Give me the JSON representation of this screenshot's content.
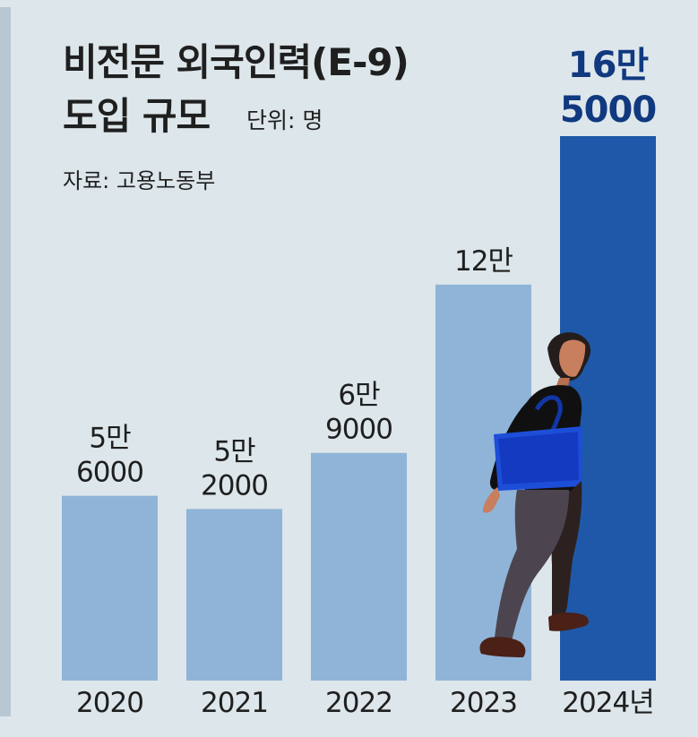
{
  "header": {
    "title_line_1": "비전문 외국인력(E-9)",
    "title_line_2": "도입 규모",
    "unit": "단위: 명",
    "source": "자료: 고용노동부"
  },
  "chart_data": {
    "type": "bar",
    "categories": [
      "2020",
      "2021",
      "2022",
      "2023",
      "2024년"
    ],
    "values": [
      56000,
      52000,
      69000,
      120000,
      165000
    ],
    "value_labels": [
      [
        "5만",
        "6000"
      ],
      [
        "5만",
        "2000"
      ],
      [
        "6만",
        "9000"
      ],
      [
        "12만"
      ],
      [
        "16만",
        "5000"
      ]
    ],
    "highlight_index": 4,
    "ylim": [
      0,
      165000
    ],
    "grid": false,
    "legend": "none",
    "colors": {
      "bar": "#8fb4d8",
      "highlight_bar": "#1f58a8",
      "highlight_label": "#10397f",
      "text": "#1f1f1f",
      "background": "#dde6ea"
    }
  },
  "illustration": {
    "icon": "walking-worker-with-bag-icon"
  }
}
